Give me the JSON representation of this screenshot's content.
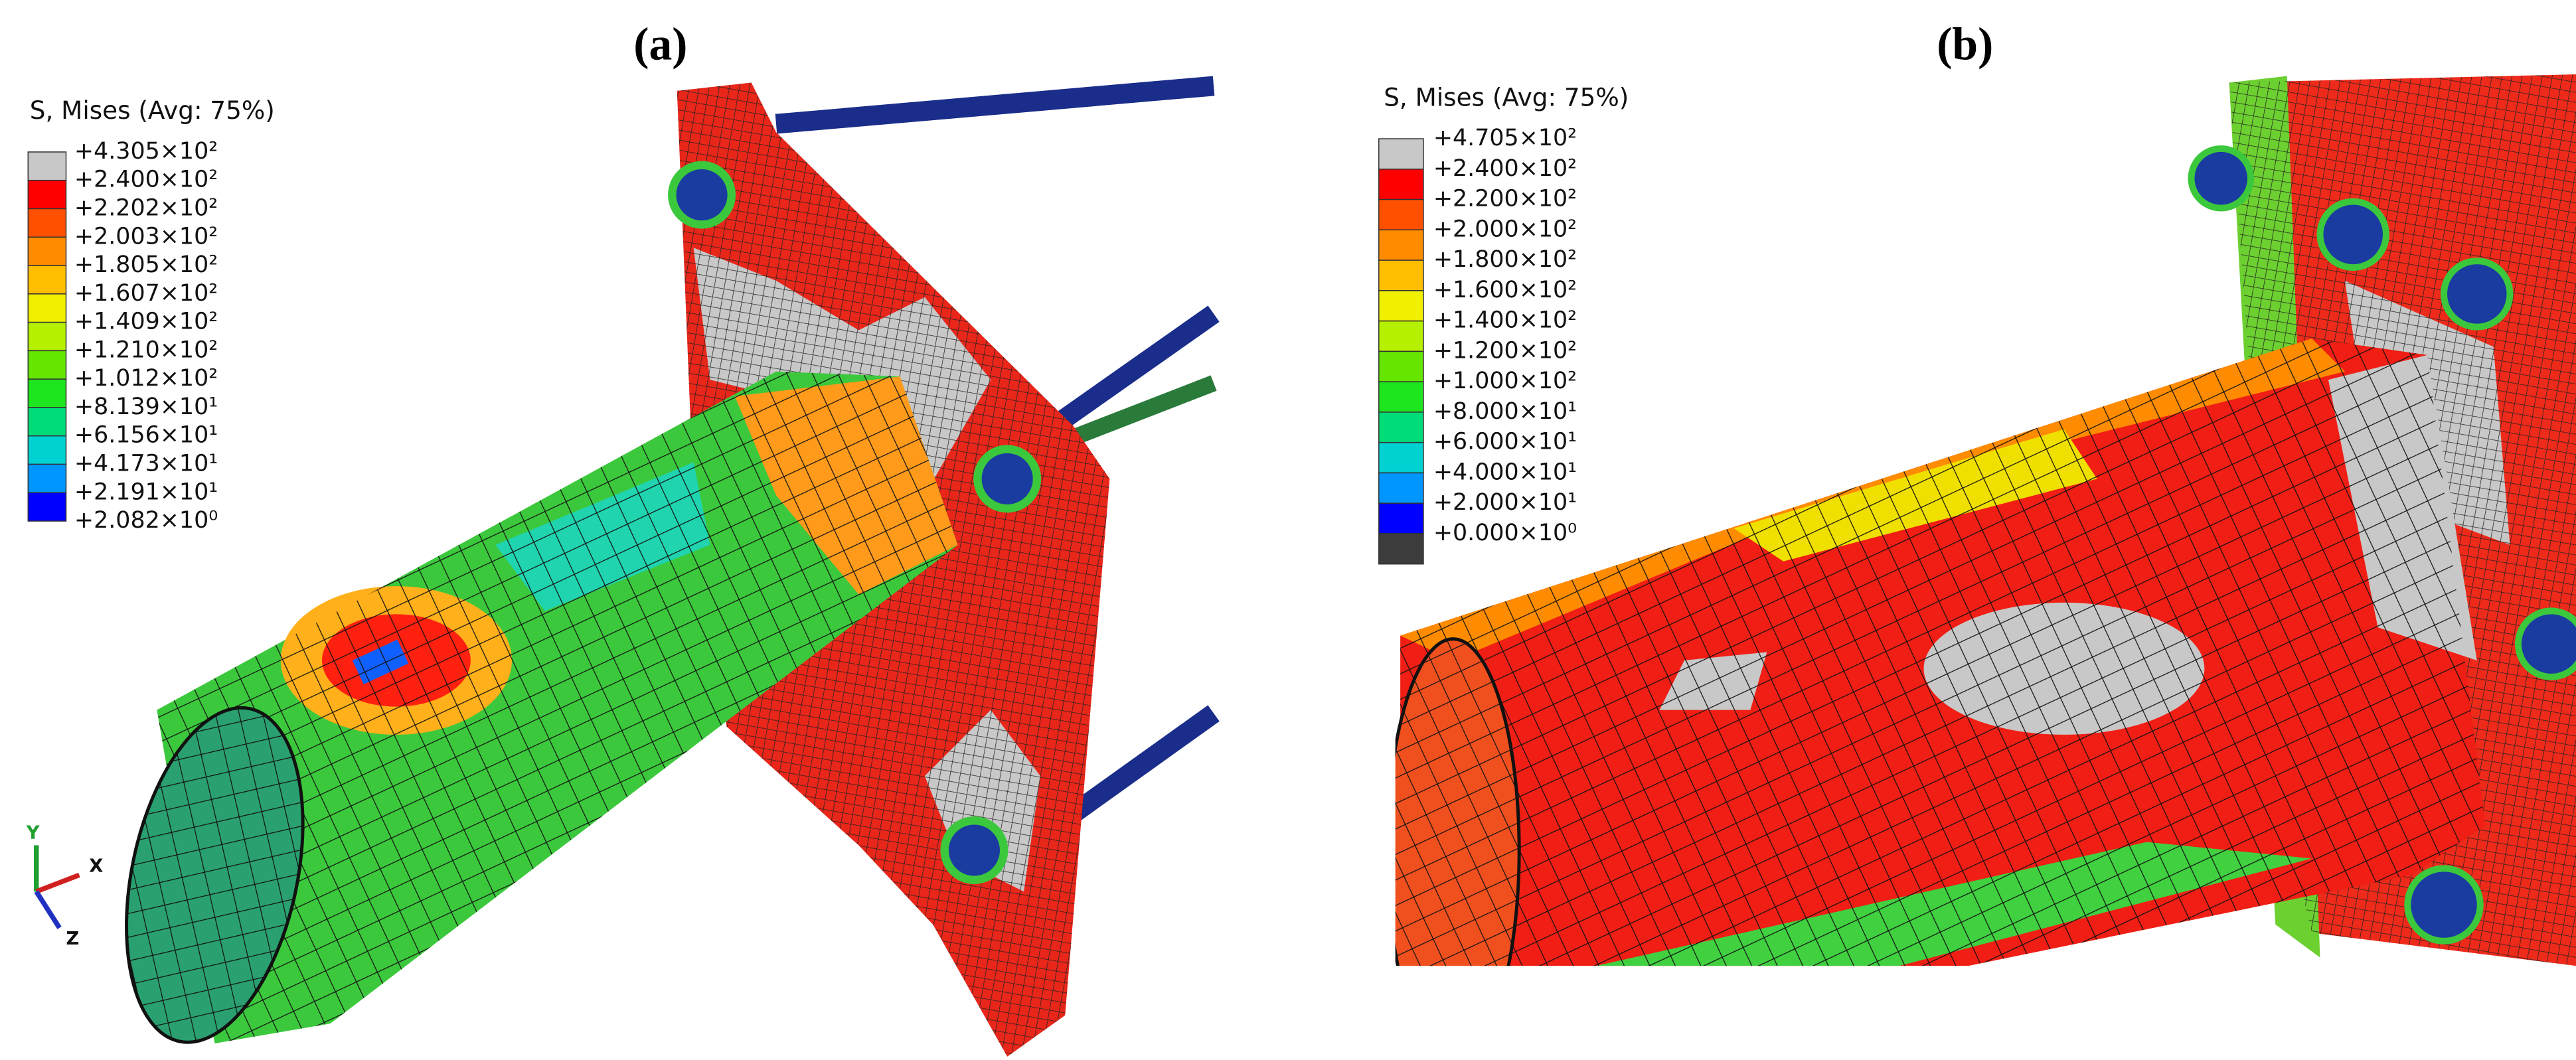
{
  "panels": [
    {
      "label": "(a)",
      "legend_title": "S, Mises  (Avg: 75%)",
      "legend": [
        "+4.305×10²",
        "+2.400×10²",
        "+2.202×10²",
        "+2.003×10²",
        "+1.805×10²",
        "+1.607×10²",
        "+1.409×10²",
        "+1.210×10²",
        "+1.012×10²",
        "+8.139×10¹",
        "+6.156×10¹",
        "+4.173×10¹",
        "+2.191×10¹",
        "+2.082×10⁰"
      ],
      "colors": [
        "#c8c8c8",
        "#ff0000",
        "#ff5000",
        "#ff8c00",
        "#ffbe00",
        "#f0f000",
        "#b4f000",
        "#64e600",
        "#1ee61e",
        "#00dc78",
        "#00d2d2",
        "#0096ff",
        "#0000ff"
      ],
      "axes": [
        "Y",
        "X",
        "Z"
      ]
    },
    {
      "label": "(b)",
      "legend_title": "S, Mises (Avg: 75%)",
      "legend": [
        "+4.705×10²",
        "+2.400×10²",
        "+2.200×10²",
        "+2.000×10²",
        "+1.800×10²",
        "+1.600×10²",
        "+1.400×10²",
        "+1.200×10²",
        "+1.000×10²",
        "+8.000×10¹",
        "+6.000×10¹",
        "+4.000×10¹",
        "+2.000×10¹",
        "+0.000×10⁰"
      ],
      "colors": [
        "#c8c8c8",
        "#ff0000",
        "#ff5000",
        "#ff8c00",
        "#ffbe00",
        "#f0f000",
        "#b4f000",
        "#64e600",
        "#1ee61e",
        "#00dc78",
        "#00d2d2",
        "#0096ff",
        "#0000ff",
        "#3c3c3c"
      ]
    }
  ]
}
